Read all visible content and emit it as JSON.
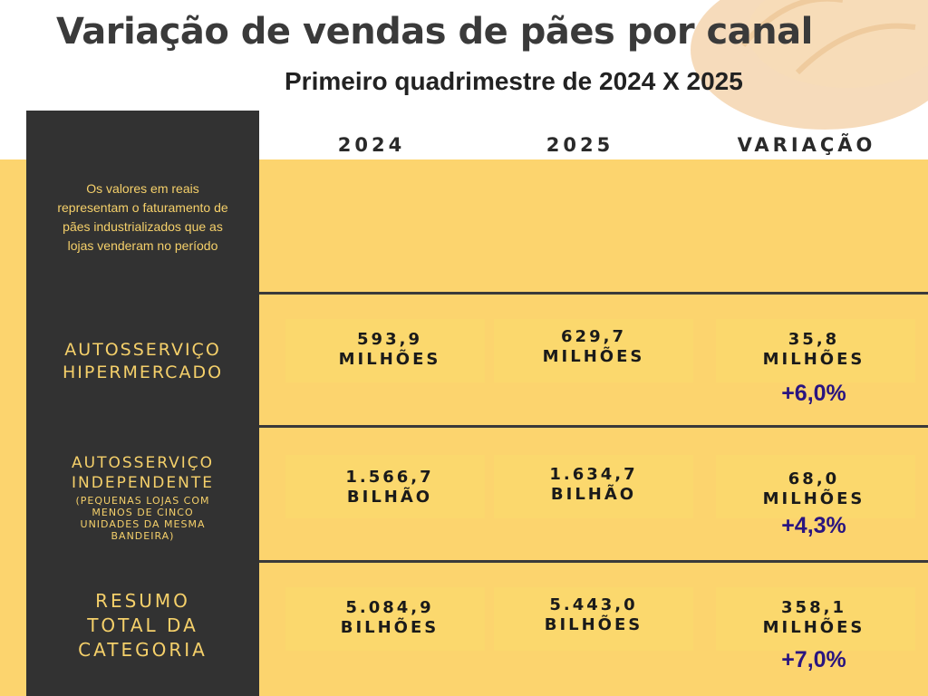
{
  "header": {
    "title": "Variação de vendas  de pães por canal",
    "subtitle": "Primeiro quadrimestre de 2024 X 2025"
  },
  "sidebar": {
    "note": "Os valores em reais\nrepresentam o  faturamento de\npães industrializados que as\nlojas venderam no período"
  },
  "columns": {
    "c2024": "2024",
    "c2025": "2025",
    "variation": "VARIAÇÃO"
  },
  "rows": [
    {
      "label": "AUTOSSERVIÇO\nHIPERMERCADO",
      "sublabel": "",
      "v2024": "593,9\nMILHÕES",
      "v2025": "629,7\nMILHÕES",
      "variation": "35,8\nMILHÕES",
      "percent": "+6,0%"
    },
    {
      "label": "AUTOSSERVIÇO\nINDEPENDENTE",
      "sublabel": "(PEQUENAS LOJAS COM\nMENOS DE CINCO\nUNIDADES DA MESMA\nBANDEIRA)",
      "v2024": "1.566,7\nBILHÃO",
      "v2025": "1.634,7\nBILHÃO",
      "variation": "68,0\nMILHÕES",
      "percent": "+4,3%"
    },
    {
      "label": "RESUMO\nTOTAL DA\nCATEGORIA",
      "sublabel": "",
      "v2024": "5.084,9\nBILHÕES",
      "v2025": "5.443,0\nBILHÕES",
      "variation": "358,1\nMILHÕES",
      "percent": "+7,0%"
    }
  ],
  "colors": {
    "background_yellow": "#fcd46e",
    "sidebar_dark": "#323232",
    "label_gold": "#f5d06a",
    "percent_purple": "#2a1580"
  }
}
